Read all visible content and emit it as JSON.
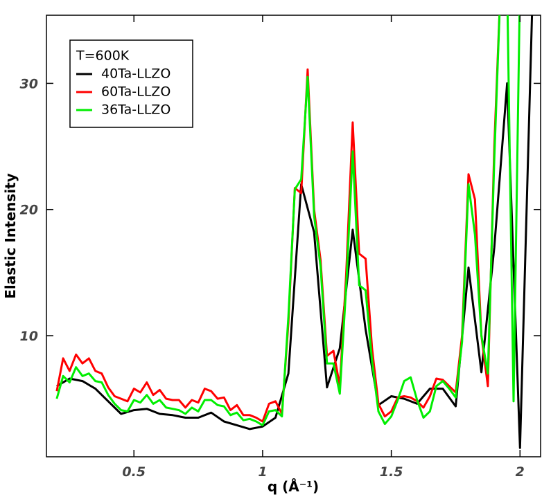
{
  "chart_data": {
    "type": "line",
    "xlabel": "q (Å⁻¹)",
    "ylabel": "Elastic Intensity",
    "legend_title": "T=600K",
    "xlim": [
      0.16,
      2.08
    ],
    "ylim": [
      0.4,
      35.4
    ],
    "xticks": [
      0.5,
      1,
      1.5,
      2
    ],
    "yticks": [
      10,
      20,
      30
    ],
    "series": [
      {
        "name": "40Ta-LLZO",
        "color": "#000000",
        "x": [
          0.2,
          0.25,
          0.3,
          0.35,
          0.4,
          0.45,
          0.5,
          0.55,
          0.6,
          0.65,
          0.7,
          0.75,
          0.8,
          0.85,
          0.9,
          0.95,
          1.0,
          1.05,
          1.1,
          1.15,
          1.2,
          1.25,
          1.3,
          1.35,
          1.4,
          1.45,
          1.5,
          1.55,
          1.6,
          1.65,
          1.7,
          1.75,
          1.8,
          1.85,
          1.9,
          1.95,
          2.0,
          2.05
        ],
        "values": [
          6.0,
          6.6,
          6.4,
          5.8,
          4.8,
          3.8,
          4.1,
          4.2,
          3.8,
          3.7,
          3.5,
          3.5,
          3.9,
          3.2,
          2.9,
          2.6,
          2.8,
          3.5,
          7.0,
          22.0,
          18.2,
          5.9,
          9.0,
          18.4,
          10.5,
          4.5,
          5.2,
          5.0,
          4.6,
          5.8,
          5.8,
          4.4,
          15.4,
          7.1,
          17.0,
          30.0,
          1.1,
          38.0
        ]
      },
      {
        "name": "60Ta-LLZO",
        "color": "#ff0000",
        "x": [
          0.2,
          0.225,
          0.25,
          0.275,
          0.3,
          0.325,
          0.35,
          0.375,
          0.4,
          0.425,
          0.45,
          0.475,
          0.5,
          0.525,
          0.55,
          0.575,
          0.6,
          0.625,
          0.65,
          0.675,
          0.7,
          0.725,
          0.75,
          0.775,
          0.8,
          0.825,
          0.85,
          0.875,
          0.9,
          0.925,
          0.95,
          0.975,
          1.0,
          1.025,
          1.05,
          1.075,
          1.1,
          1.125,
          1.15,
          1.175,
          1.2,
          1.225,
          1.25,
          1.275,
          1.3,
          1.325,
          1.35,
          1.375,
          1.4,
          1.425,
          1.45,
          1.475,
          1.5,
          1.525,
          1.55,
          1.575,
          1.6,
          1.625,
          1.65,
          1.675,
          1.7,
          1.725,
          1.75,
          1.775,
          1.8,
          1.825,
          1.85,
          1.875,
          1.9,
          1.925,
          1.95,
          1.975,
          2.0
        ],
        "values": [
          5.6,
          8.2,
          7.2,
          8.5,
          7.8,
          8.2,
          7.2,
          7.0,
          5.9,
          5.2,
          5.0,
          4.8,
          5.8,
          5.5,
          6.3,
          5.3,
          5.7,
          5.0,
          4.9,
          4.9,
          4.3,
          4.9,
          4.7,
          5.8,
          5.6,
          5.0,
          5.1,
          4.1,
          4.5,
          3.7,
          3.7,
          3.5,
          3.2,
          4.6,
          4.8,
          3.8,
          11.0,
          21.7,
          21.3,
          31.1,
          20.0,
          16.0,
          8.4,
          8.8,
          6.0,
          15.0,
          26.9,
          16.5,
          16.1,
          9.0,
          4.6,
          3.6,
          4.0,
          5.1,
          5.2,
          5.1,
          4.8,
          4.3,
          5.2,
          6.6,
          6.5,
          6.0,
          5.5,
          10.0,
          22.8,
          20.8,
          10.0,
          6.0,
          25.0,
          38.0,
          38.0,
          36.0,
          38.0
        ]
      },
      {
        "name": "36Ta-LLZO",
        "color": "#00ee00",
        "x": [
          0.2,
          0.225,
          0.25,
          0.275,
          0.3,
          0.325,
          0.35,
          0.375,
          0.4,
          0.425,
          0.45,
          0.475,
          0.5,
          0.525,
          0.55,
          0.575,
          0.6,
          0.625,
          0.65,
          0.675,
          0.7,
          0.725,
          0.75,
          0.775,
          0.8,
          0.825,
          0.85,
          0.875,
          0.9,
          0.925,
          0.95,
          0.975,
          1.0,
          1.025,
          1.05,
          1.075,
          1.1,
          1.125,
          1.15,
          1.175,
          1.2,
          1.225,
          1.25,
          1.275,
          1.3,
          1.325,
          1.35,
          1.375,
          1.4,
          1.425,
          1.45,
          1.475,
          1.5,
          1.525,
          1.55,
          1.575,
          1.6,
          1.625,
          1.65,
          1.675,
          1.7,
          1.725,
          1.75,
          1.775,
          1.8,
          1.825,
          1.85,
          1.875,
          1.9,
          1.925,
          1.95,
          1.975,
          2.0
        ],
        "values": [
          5.0,
          6.8,
          6.3,
          7.5,
          6.8,
          7.0,
          6.4,
          6.3,
          5.3,
          4.6,
          4.1,
          4.0,
          4.9,
          4.7,
          5.3,
          4.6,
          4.9,
          4.3,
          4.2,
          4.1,
          3.8,
          4.3,
          4.0,
          4.9,
          4.9,
          4.5,
          4.4,
          3.7,
          3.9,
          3.3,
          3.4,
          3.2,
          2.9,
          4.0,
          4.1,
          3.6,
          11.5,
          21.6,
          22.4,
          30.5,
          19.5,
          15.5,
          7.8,
          7.8,
          5.4,
          14.0,
          24.6,
          14.0,
          13.6,
          8.0,
          4.0,
          3.0,
          3.6,
          4.9,
          6.4,
          6.7,
          4.9,
          3.5,
          4.0,
          6.0,
          6.4,
          5.8,
          5.1,
          9.5,
          22.0,
          18.0,
          10.0,
          7.0,
          24.0,
          38.0,
          38.0,
          4.8,
          38.0
        ]
      }
    ]
  }
}
